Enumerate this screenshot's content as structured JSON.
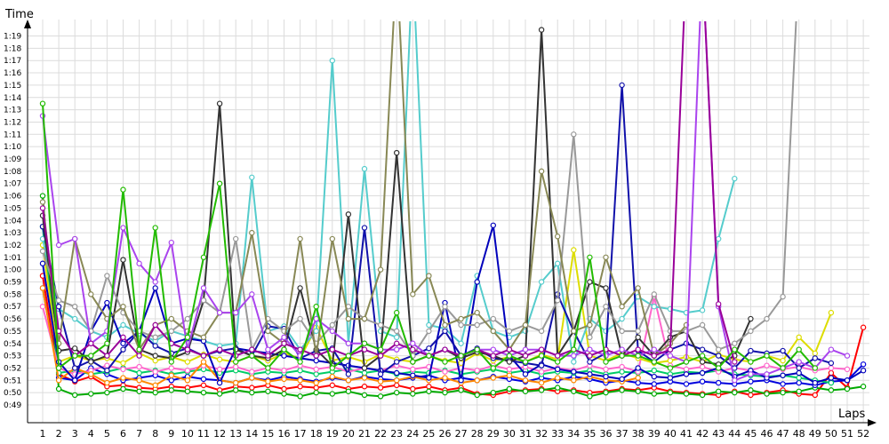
{
  "chart_data": {
    "type": "line",
    "ylabel": "Time",
    "xlabel": "Laps",
    "xlim": [
      1,
      52
    ],
    "ylim": [
      48.5,
      79.8
    ],
    "grid": true,
    "x_ticks": [
      1,
      2,
      3,
      4,
      5,
      6,
      7,
      8,
      9,
      10,
      11,
      12,
      13,
      14,
      15,
      16,
      17,
      18,
      19,
      20,
      21,
      22,
      23,
      24,
      25,
      26,
      27,
      28,
      29,
      30,
      31,
      32,
      33,
      34,
      35,
      36,
      37,
      38,
      39,
      40,
      41,
      42,
      43,
      44,
      45,
      46,
      47,
      48,
      49,
      50,
      51,
      52
    ],
    "y_ticks": [
      {
        "value": 49,
        "label": "0:49"
      },
      {
        "value": 50,
        "label": "0:50"
      },
      {
        "value": 51,
        "label": "0:51"
      },
      {
        "value": 52,
        "label": "0:52"
      },
      {
        "value": 53,
        "label": "0:53"
      },
      {
        "value": 54,
        "label": "0:54"
      },
      {
        "value": 55,
        "label": "0:55"
      },
      {
        "value": 56,
        "label": "0:56"
      },
      {
        "value": 57,
        "label": "0:57"
      },
      {
        "value": 58,
        "label": "0:58"
      },
      {
        "value": 59,
        "label": "0:59"
      },
      {
        "value": 60,
        "label": "1:00"
      },
      {
        "value": 61,
        "label": "1:01"
      },
      {
        "value": 62,
        "label": "1:02"
      },
      {
        "value": 63,
        "label": "1:03"
      },
      {
        "value": 64,
        "label": "1:04"
      },
      {
        "value": 65,
        "label": "1:05"
      },
      {
        "value": 66,
        "label": "1:06"
      },
      {
        "value": 67,
        "label": "1:07"
      },
      {
        "value": 68,
        "label": "1:08"
      },
      {
        "value": 69,
        "label": "1:09"
      },
      {
        "value": 70,
        "label": "1:10"
      },
      {
        "value": 71,
        "label": "1:11"
      },
      {
        "value": 72,
        "label": "1:12"
      },
      {
        "value": 73,
        "label": "1:13"
      },
      {
        "value": 74,
        "label": "1:14"
      },
      {
        "value": 75,
        "label": "1:15"
      },
      {
        "value": 76,
        "label": "1:16"
      },
      {
        "value": 77,
        "label": "1:17"
      },
      {
        "value": 78,
        "label": "1:18"
      },
      {
        "value": 79,
        "label": "1:19"
      }
    ],
    "series": [
      {
        "color": "#ff0000",
        "values": [
          59.5,
          51.5,
          50.9,
          51.3,
          50.5,
          50.6,
          50.4,
          50.3,
          50.5,
          50.4,
          50.6,
          50.2,
          50.5,
          50.4,
          50.6,
          50.3,
          50.5,
          50.4,
          50.6,
          50.3,
          50.5,
          50.4,
          50.6,
          50.3,
          50.5,
          50.2,
          50.4,
          49.9,
          49.8,
          50.1,
          50.2,
          50.3,
          50.1,
          50.2,
          50.0,
          50.1,
          50.3,
          50.2,
          50.4,
          50.1,
          50.0,
          49.9,
          49.8,
          50.1,
          49.8,
          50.0,
          50.2,
          49.9,
          49.8,
          51.6,
          50.4,
          55.3
        ]
      },
      {
        "color": "#00aa00",
        "values": [
          66.0,
          50.3,
          49.8,
          49.9,
          50.0,
          50.3,
          50.1,
          50.0,
          50.2,
          50.1,
          50.0,
          49.9,
          50.2,
          50.0,
          50.1,
          49.9,
          49.7,
          50.0,
          49.9,
          50.1,
          49.8,
          49.7,
          50.0,
          49.9,
          50.1,
          50.0,
          50.2,
          49.8,
          50.0,
          50.3,
          50.1,
          50.2,
          50.4,
          50.1,
          49.7,
          50.0,
          50.2,
          50.1,
          49.9,
          50.0,
          49.9,
          49.8,
          50.1,
          50.0,
          50.2,
          49.9,
          50.0,
          50.1,
          50.4,
          50.2,
          50.3,
          50.5
        ]
      },
      {
        "color": "#0000dd",
        "values": [
          58.5,
          51.2,
          51.0,
          52.0,
          51.5,
          51.0,
          51.2,
          51.4,
          51.0,
          51.3,
          51.1,
          51.0,
          50.8,
          51.2,
          51.0,
          51.3,
          51.1,
          50.9,
          51.2,
          51.0,
          51.3,
          51.1,
          51.0,
          51.2,
          51.4,
          51.0,
          51.2,
          51.0,
          51.3,
          51.1,
          50.9,
          51.2,
          51.0,
          51.3,
          51.1,
          50.8,
          51.0,
          50.8,
          50.7,
          50.9,
          50.7,
          50.9,
          50.8,
          50.7,
          50.9,
          51.0,
          50.7,
          50.8,
          50.6,
          50.9,
          51.0,
          52.3
        ]
      },
      {
        "color": "#00cc66",
        "values": [
          63.5,
          51.6,
          51.8,
          51.5,
          51.7,
          52.0,
          51.6,
          51.8,
          51.5,
          51.7,
          51.9,
          51.6,
          51.8,
          51.5,
          51.7,
          51.6,
          51.8,
          51.5,
          51.7,
          51.9,
          51.6,
          51.8,
          51.5,
          51.7,
          51.6,
          51.8,
          51.5,
          51.7,
          51.9,
          51.6,
          51.8,
          51.5,
          51.7,
          51.6,
          51.8,
          51.5,
          51.7,
          51.6,
          51.8,
          51.5,
          51.7,
          51.6,
          51.8,
          51.5,
          51.4,
          51.3,
          51.4,
          51.2,
          51.0,
          50.8
        ]
      },
      {
        "color": "#ff66cc",
        "values": [
          57.0,
          52.0,
          51.5,
          51.8,
          52.2,
          51.9,
          52.1,
          51.7,
          52.0,
          51.8,
          52.2,
          51.9,
          52.1,
          51.7,
          52.0,
          51.8,
          52.2,
          51.9,
          52.1,
          51.7,
          52.0,
          51.8,
          52.2,
          51.9,
          52.1,
          51.7,
          52.0,
          51.8,
          52.2,
          51.9,
          52.1,
          51.7,
          52.0,
          51.8,
          52.2,
          51.9,
          52.1,
          51.7,
          57.8,
          52.2,
          51.9,
          52.1,
          51.7,
          52.0,
          51.8,
          52.2,
          51.9,
          52.1,
          51.8,
          52.0,
          51.9
        ]
      },
      {
        "color": "#ff8800",
        "values": [
          58.5,
          51.0,
          52.0,
          51.5,
          50.8,
          51.2,
          51.0,
          50.6,
          51.4,
          51.0,
          52.5,
          51.0,
          50.8,
          51.2,
          50.9,
          51.1,
          51.0,
          50.8,
          51.3,
          51.0,
          51.2,
          50.9,
          51.0,
          51.3,
          51.0,
          51.2,
          50.8,
          51.0,
          51.2,
          51.4,
          51.0,
          50.8,
          51.2,
          51.0,
          51.3,
          51.0,
          50.9,
          51.2
        ]
      },
      {
        "color": "#dddd00",
        "values": [
          62.0,
          52.5,
          53.0,
          52.6,
          52.8,
          52.4,
          53.2,
          52.6,
          52.9,
          52.5,
          53.1,
          52.7,
          52.5,
          53.0,
          52.6,
          53.2,
          52.8,
          55.3,
          52.6,
          52.9,
          52.5,
          53.1,
          52.7,
          52.5,
          53.0,
          52.6,
          52.4,
          53.2,
          52.6,
          52.9,
          52.5,
          53.1,
          52.7,
          61.6,
          53.0,
          52.6,
          53.2,
          52.8,
          52.4,
          52.6,
          52.9,
          52.5,
          53.1,
          52.7,
          52.5,
          53.0,
          52.6,
          54.5,
          53.2,
          56.5
        ]
      },
      {
        "color": "#55cccc",
        "values": [
          62.5,
          56.8,
          56.0,
          55.0,
          54.5,
          55.5,
          54.8,
          54.2,
          55.0,
          54.6,
          54.2,
          53.8,
          54.0,
          67.5,
          55.0,
          55.4,
          53.5,
          55.0,
          77.0,
          54.0,
          68.2,
          55.0,
          54.5,
          85.0,
          55.5,
          55.2,
          54.0,
          59.5,
          55.0,
          54.5,
          55.0,
          59.0,
          60.5,
          52.5,
          56.0,
          55.0,
          56.0,
          57.8,
          57.0,
          56.8,
          56.5,
          56.7,
          62.5,
          67.4
        ]
      },
      {
        "color": "#0000bb",
        "values": [
          60.5,
          52.5,
          51.0,
          55.0,
          57.3,
          54.0,
          55.0,
          58.5,
          54.0,
          54.4,
          54.2,
          50.8,
          53.6,
          53.4,
          53.2,
          53.0,
          52.8,
          52.6,
          52.4,
          52.2,
          52.0,
          51.8,
          51.6,
          51.4,
          51.2,
          57.3,
          51.0,
          59.0,
          63.6,
          53.0,
          51.5,
          52.3,
          51.9,
          51.7,
          51.5,
          51.3,
          51.1,
          52.0,
          51.3,
          51.2,
          51.5,
          51.6,
          52.0,
          51.3,
          51.8,
          51.2,
          51.4,
          51.6,
          50.8,
          51.2,
          51.0,
          51.8
        ]
      },
      {
        "color": "#1111aa",
        "values": [
          63.5,
          57.0,
          52.0,
          52.6,
          51.8,
          53.5,
          55.0,
          53.8,
          53.2,
          53.6,
          53.0,
          53.4,
          53.6,
          53.0,
          55.4,
          55.2,
          52.8,
          53.4,
          53.6,
          51.5,
          63.4,
          51.5,
          52.5,
          53.0,
          53.6,
          55.0,
          53.0,
          53.6,
          52.8,
          52.6,
          52.4,
          52.2,
          58.0,
          55.0,
          52.5,
          53.2,
          75.0,
          53.4,
          52.5,
          53.5,
          54.0,
          53.5,
          53.0,
          52.0,
          53.4,
          53.2,
          53.4,
          52.0,
          52.8,
          52.4
        ]
      },
      {
        "color": "#333333",
        "values": [
          64.4,
          53.4,
          53.6,
          52.5,
          53.0,
          60.8,
          53.5,
          53.0,
          52.8,
          53.3,
          57.5,
          73.5,
          53.5,
          53.0,
          52.8,
          53.5,
          58.5,
          53.5,
          52.2,
          64.5,
          52.0,
          53.0,
          69.5,
          52.5,
          53.0,
          53.5,
          52.8,
          53.3,
          53.0,
          52.5,
          53.0,
          79.5,
          53.0,
          55.0,
          59.0,
          58.5,
          53.0,
          54.5,
          53.0,
          54.5,
          55.0,
          52.5,
          52.3,
          53.0,
          56.0
        ]
      },
      {
        "color": "#999999",
        "values": [
          61.5,
          57.5,
          57.0,
          55.0,
          59.5,
          56.5,
          55.0,
          54.5,
          55.0,
          56.0,
          57.5,
          56.5,
          62.5,
          53.5,
          56.0,
          55.0,
          56.0,
          54.0,
          55.5,
          57.0,
          56.0,
          55.5,
          55.0,
          53.0,
          55.0,
          57.0,
          55.5,
          55.5,
          56.0,
          55.0,
          55.5,
          55.0,
          57.5,
          71.0,
          54.5,
          57.0,
          55.0,
          55.0,
          58.0,
          55.0,
          55.0,
          55.5,
          53.5,
          54.0,
          55.0,
          56.0,
          57.8,
          85.0
        ]
      },
      {
        "color": "#888855",
        "values": [
          65.5,
          54.0,
          62.5,
          58.0,
          56.0,
          57.0,
          53.5,
          55.5,
          56.0,
          55.0,
          54.5,
          56.5,
          56.5,
          63.0,
          55.0,
          54.0,
          62.5,
          53.0,
          62.5,
          56.0,
          56.0,
          60.0,
          85.0,
          58.0,
          59.5,
          55.5,
          56.0,
          56.5,
          55.0,
          53.5,
          55.5,
          68.0,
          62.7,
          55.0,
          55.5,
          61.0,
          57.0,
          58.5,
          53.0,
          54.0,
          55.5
        ]
      },
      {
        "color": "#aa44ee",
        "values": [
          72.5,
          62.0,
          62.5,
          54.0,
          55.0,
          63.4,
          60.5,
          59.0,
          62.2,
          53.5,
          58.5,
          56.5,
          56.5,
          58.0,
          53.5,
          54.5,
          53.0,
          56.0,
          55.0,
          54.0,
          54.0,
          53.5,
          53.5,
          54.0,
          53.0,
          53.5,
          53.0,
          53.5,
          53.5,
          53.0,
          53.5,
          53.5,
          53.0,
          53.0,
          53.5,
          53.0,
          53.5,
          53.0,
          53.5,
          53.0,
          52.5,
          85.0,
          57.0,
          51.0,
          51.5,
          51.5,
          52.0,
          52.5,
          52.0,
          53.5,
          53.0
        ]
      },
      {
        "color": "#990099",
        "values": [
          65.0,
          55.0,
          53.0,
          54.0,
          53.0,
          54.5,
          53.0,
          55.5,
          54.0,
          53.5,
          53.0,
          53.5,
          53.0,
          53.5,
          53.0,
          54.0,
          53.5,
          53.0,
          53.5,
          53.0,
          53.5,
          53.0,
          54.0,
          53.5,
          53.0,
          53.5,
          53.0,
          53.5,
          53.0,
          53.5,
          53.0,
          53.5,
          53.0,
          53.5,
          53.0,
          53.5,
          53.0,
          53.5,
          53.0,
          53.5,
          85.0,
          85.0,
          57.2,
          52.5
        ]
      },
      {
        "color": "#22bb00",
        "values": [
          73.5,
          52.0,
          53.0,
          53.0,
          54.0,
          66.5,
          53.5,
          63.4,
          52.5,
          54.5,
          61.0,
          67.0,
          52.5,
          53.0,
          52.0,
          53.5,
          52.5,
          57.0,
          52.0,
          53.0,
          54.0,
          53.5,
          56.5,
          52.5,
          53.0,
          52.5,
          53.0,
          53.5,
          52.0,
          53.0,
          52.5,
          53.0,
          52.5,
          53.5,
          61.0,
          52.5,
          53.0,
          53.0,
          52.5,
          52.0,
          52.5,
          53.0,
          52.0,
          53.5,
          52.5,
          53.0,
          52.0,
          53.5,
          52.0
        ]
      }
    ]
  }
}
